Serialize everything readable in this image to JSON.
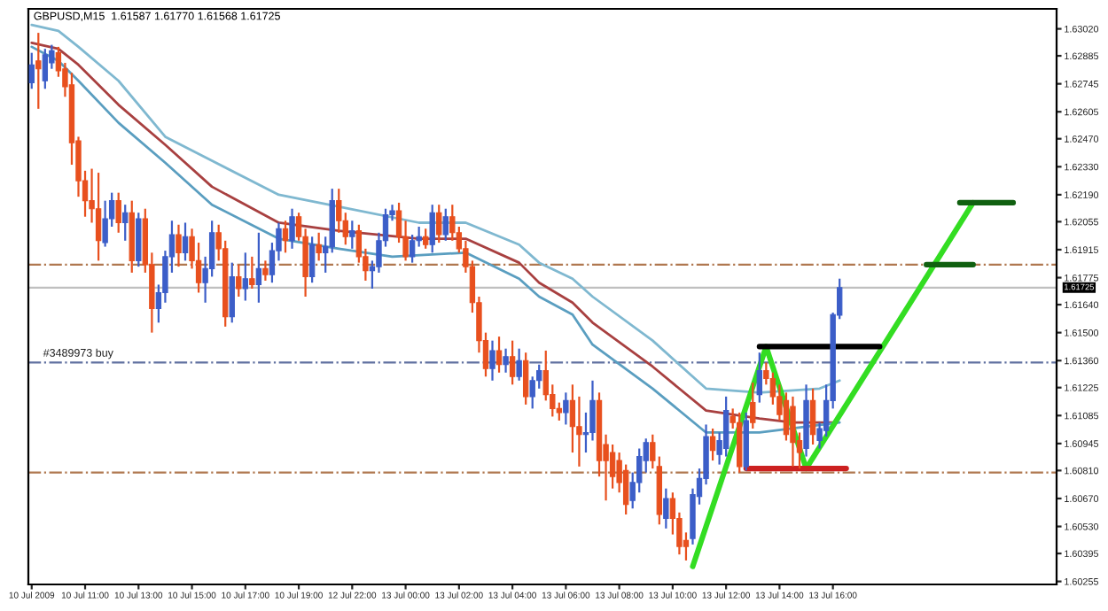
{
  "chart_data": {
    "type": "candlestick",
    "title": "GBPUSD,M15  1.61587 1.61770 1.61568 1.61725",
    "categories": [
      "10 Jul 2009",
      null,
      null,
      null,
      null,
      null,
      null,
      null,
      "10 Jul 11:00",
      null,
      null,
      null,
      null,
      null,
      null,
      null,
      "10 Jul 13:00",
      null,
      null,
      null,
      null,
      null,
      null,
      null,
      "10 Jul 15:00",
      null,
      null,
      null,
      null,
      null,
      null,
      null,
      "10 Jul 17:00",
      null,
      null,
      null,
      null,
      null,
      null,
      null,
      "10 Jul 19:00",
      null,
      null,
      null,
      null,
      null,
      null,
      null,
      "12 Jul 22:00",
      null,
      null,
      null,
      null,
      null,
      null,
      null,
      "13 Jul 00:00",
      null,
      null,
      null,
      null,
      null,
      null,
      null,
      "13 Jul 02:00",
      null,
      null,
      null,
      null,
      null,
      null,
      null,
      "13 Jul 04:00",
      null,
      null,
      null,
      null,
      null,
      null,
      null,
      "13 Jul 06:00",
      null,
      null,
      null,
      null,
      null,
      null,
      null,
      "13 Jul 08:00",
      null,
      null,
      null,
      null,
      null,
      null,
      null,
      "13 Jul 10:00",
      null,
      null,
      null,
      null,
      null,
      null,
      null,
      "13 Jul 12:00",
      null,
      null,
      null,
      null,
      null,
      null,
      null,
      "13 Jul 14:00",
      null,
      null,
      null,
      null,
      null,
      null,
      null,
      "13 Jul 16:00",
      null,
      null,
      null,
      null,
      null,
      null,
      null,
      null,
      null,
      null,
      null,
      null,
      null,
      null,
      null,
      null,
      null,
      null,
      null,
      null,
      null,
      null,
      null,
      null,
      null,
      null,
      null,
      null,
      null,
      null,
      null,
      null,
      null
    ],
    "ohlc": [
      [
        1.6275,
        1.629,
        1.6272,
        1.6284
      ],
      [
        1.6286,
        1.63,
        1.6262,
        1.6282
      ],
      [
        1.6276,
        1.6292,
        1.6272,
        1.6289
      ],
      [
        1.6285,
        1.6294,
        1.6282,
        1.6291
      ],
      [
        1.629,
        1.6293,
        1.6278,
        1.6281
      ],
      [
        1.6282,
        1.6285,
        1.6268,
        1.6273
      ],
      [
        1.6274,
        1.628,
        1.6234,
        1.6245
      ],
      [
        1.6246,
        1.6248,
        1.6218,
        1.6226
      ],
      [
        1.6226,
        1.6231,
        1.6208,
        1.6216
      ],
      [
        1.6216,
        1.6232,
        1.6205,
        1.6212
      ],
      [
        1.6212,
        1.623,
        1.6186,
        1.6196
      ],
      [
        1.6195,
        1.6216,
        1.6193,
        1.6207
      ],
      [
        1.6207,
        1.622,
        1.6203,
        1.6216
      ],
      [
        1.6216,
        1.622,
        1.62,
        1.6205
      ],
      [
        1.6205,
        1.6214,
        1.6196,
        1.621
      ],
      [
        1.621,
        1.6216,
        1.618,
        1.6186
      ],
      [
        1.6186,
        1.621,
        1.6183,
        1.6207
      ],
      [
        1.6207,
        1.6212,
        1.618,
        1.6184
      ],
      [
        1.6184,
        1.619,
        1.615,
        1.6162
      ],
      [
        1.6162,
        1.6174,
        1.6155,
        1.617
      ],
      [
        1.617,
        1.6191,
        1.6165,
        1.6188
      ],
      [
        1.6188,
        1.6206,
        1.618,
        1.6199
      ],
      [
        1.6199,
        1.6204,
        1.6183,
        1.619
      ],
      [
        1.619,
        1.6205,
        1.6186,
        1.6198
      ],
      [
        1.6198,
        1.6202,
        1.6182,
        1.6186
      ],
      [
        1.6186,
        1.6195,
        1.617,
        1.6175
      ],
      [
        1.6175,
        1.6188,
        1.6165,
        1.6182
      ],
      [
        1.6182,
        1.6206,
        1.6178,
        1.62
      ],
      [
        1.62,
        1.6204,
        1.6186,
        1.6192
      ],
      [
        1.6192,
        1.6196,
        1.6153,
        1.6158
      ],
      [
        1.6158,
        1.6185,
        1.6155,
        1.6178
      ],
      [
        1.6178,
        1.6184,
        1.6168,
        1.6172
      ],
      [
        1.6172,
        1.619,
        1.6166,
        1.6177
      ],
      [
        1.6177,
        1.6188,
        1.6172,
        1.6174
      ],
      [
        1.6174,
        1.62,
        1.6165,
        1.6182
      ],
      [
        1.6182,
        1.6186,
        1.6176,
        1.6179
      ],
      [
        1.6179,
        1.6195,
        1.6175,
        1.6191
      ],
      [
        1.6191,
        1.6205,
        1.6186,
        1.6202
      ],
      [
        1.6202,
        1.6206,
        1.619,
        1.6196
      ],
      [
        1.6196,
        1.6212,
        1.6192,
        1.6208
      ],
      [
        1.6208,
        1.621,
        1.6196,
        1.6198
      ],
      [
        1.6198,
        1.6202,
        1.6168,
        1.6178
      ],
      [
        1.6178,
        1.6198,
        1.6175,
        1.6194
      ],
      [
        1.6194,
        1.62,
        1.6186,
        1.619
      ],
      [
        1.619,
        1.6198,
        1.618,
        1.6193
      ],
      [
        1.6193,
        1.6222,
        1.619,
        1.6216
      ],
      [
        1.6216,
        1.6222,
        1.62,
        1.6206
      ],
      [
        1.6206,
        1.621,
        1.6194,
        1.6198
      ],
      [
        1.6198,
        1.6206,
        1.6192,
        1.6201
      ],
      [
        1.6201,
        1.6204,
        1.6185,
        1.6188
      ],
      [
        1.6188,
        1.6192,
        1.6176,
        1.6181
      ],
      [
        1.6181,
        1.6186,
        1.6172,
        1.6183
      ],
      [
        1.6183,
        1.62,
        1.618,
        1.6196
      ],
      [
        1.6196,
        1.6212,
        1.6193,
        1.6209
      ],
      [
        1.6209,
        1.6214,
        1.6206,
        1.6211
      ],
      [
        1.6211,
        1.6215,
        1.6195,
        1.6198
      ],
      [
        1.6198,
        1.6206,
        1.6186,
        1.6188
      ],
      [
        1.6188,
        1.6199,
        1.6185,
        1.6196
      ],
      [
        1.6196,
        1.6203,
        1.6193,
        1.6198
      ],
      [
        1.6198,
        1.6202,
        1.6192,
        1.6194
      ],
      [
        1.6194,
        1.6214,
        1.619,
        1.621
      ],
      [
        1.621,
        1.6214,
        1.6195,
        1.6199
      ],
      [
        1.6199,
        1.6212,
        1.6196,
        1.6208
      ],
      [
        1.6208,
        1.6214,
        1.6196,
        1.62
      ],
      [
        1.62,
        1.6203,
        1.619,
        1.6192
      ],
      [
        1.6192,
        1.6196,
        1.618,
        1.6183
      ],
      [
        1.6183,
        1.6186,
        1.616,
        1.6165
      ],
      [
        1.6165,
        1.6168,
        1.614,
        1.6146
      ],
      [
        1.6146,
        1.615,
        1.6128,
        1.6132
      ],
      [
        1.6132,
        1.6146,
        1.6126,
        1.6141
      ],
      [
        1.6141,
        1.6148,
        1.613,
        1.6134
      ],
      [
        1.6134,
        1.6142,
        1.613,
        1.6138
      ],
      [
        1.6138,
        1.6146,
        1.6124,
        1.6128
      ],
      [
        1.6128,
        1.6142,
        1.6126,
        1.6136
      ],
      [
        1.6136,
        1.614,
        1.6114,
        1.6118
      ],
      [
        1.6118,
        1.6128,
        1.6112,
        1.6126
      ],
      [
        1.6126,
        1.6134,
        1.6122,
        1.6131
      ],
      [
        1.6131,
        1.6141,
        1.6116,
        1.6119
      ],
      [
        1.6119,
        1.6124,
        1.6108,
        1.6112
      ],
      [
        1.6112,
        1.6115,
        1.6106,
        1.611
      ],
      [
        1.611,
        1.612,
        1.6104,
        1.6116
      ],
      [
        1.6116,
        1.6124,
        1.609,
        1.6103
      ],
      [
        1.6103,
        1.6118,
        1.6083,
        1.6099
      ],
      [
        1.6099,
        1.611,
        1.609,
        1.61
      ],
      [
        1.61,
        1.6126,
        1.6096,
        1.6116
      ],
      [
        1.6116,
        1.612,
        1.6078,
        1.6086
      ],
      [
        1.6094,
        1.6099,
        1.6066,
        1.6086
      ],
      [
        1.609,
        1.6094,
        1.6072,
        1.6078
      ],
      [
        1.6086,
        1.609,
        1.607,
        1.6075
      ],
      [
        1.6081,
        1.6084,
        1.6059,
        1.6064
      ],
      [
        1.6066,
        1.608,
        1.6062,
        1.6075
      ],
      [
        1.6075,
        1.6092,
        1.607,
        1.6088
      ],
      [
        1.6086,
        1.6097,
        1.608,
        1.6095
      ],
      [
        1.6095,
        1.6099,
        1.6082,
        1.6086
      ],
      [
        1.6083,
        1.6088,
        1.6054,
        1.6059
      ],
      [
        1.6057,
        1.6072,
        1.6052,
        1.6067
      ],
      [
        1.6067,
        1.607,
        1.6049,
        1.6057
      ],
      [
        1.6057,
        1.606,
        1.6039,
        1.6043
      ],
      [
        1.6046,
        1.605,
        1.6036,
        1.6043
      ],
      [
        1.6047,
        1.6072,
        1.6044,
        1.6069
      ],
      [
        1.6068,
        1.6082,
        1.6064,
        1.6077
      ],
      [
        1.6077,
        1.6104,
        1.6074,
        1.6098
      ],
      [
        1.6098,
        1.6102,
        1.6086,
        1.6091
      ],
      [
        1.6089,
        1.61,
        1.6084,
        1.6096
      ],
      [
        1.6092,
        1.6118,
        1.6088,
        1.6111
      ],
      [
        1.6108,
        1.6112,
        1.6102,
        1.6105
      ],
      [
        1.6105,
        1.611,
        1.608,
        1.6083
      ],
      [
        1.6083,
        1.611,
        1.6081,
        1.6106
      ],
      [
        1.6115,
        1.6125,
        1.6102,
        1.6105
      ],
      [
        1.6119,
        1.614,
        1.6115,
        1.6131
      ],
      [
        1.6131,
        1.6135,
        1.6124,
        1.6127
      ],
      [
        1.6127,
        1.613,
        1.6114,
        1.6118
      ],
      [
        1.6118,
        1.6124,
        1.6106,
        1.6109
      ],
      [
        1.6116,
        1.612,
        1.6096,
        1.6099
      ],
      [
        1.6113,
        1.6118,
        1.6083,
        1.6095
      ],
      [
        1.6096,
        1.61,
        1.6082,
        1.609
      ],
      [
        1.6092,
        1.6124,
        1.6088,
        1.6116
      ],
      [
        1.6116,
        1.6122,
        1.6094,
        1.6099
      ],
      [
        1.6096,
        1.6105,
        1.6092,
        1.6102
      ],
      [
        1.6101,
        1.6124,
        1.6098,
        1.6116
      ],
      [
        1.6116,
        1.616,
        1.6112,
        1.6159
      ],
      [
        1.61587,
        1.6177,
        1.61568,
        1.61725
      ],
      null,
      null,
      null,
      null,
      null,
      null,
      null,
      null,
      null,
      null,
      null,
      null,
      null,
      null,
      null,
      null,
      null,
      null,
      null,
      null,
      null,
      null,
      null,
      null,
      null,
      null,
      null,
      null,
      null,
      null,
      null,
      null
    ],
    "colors": [
      "#3c5ec8",
      "#e8501e",
      "#3c5ec8",
      "#3c5ec8",
      "#e8501e",
      "#e8501e",
      "#e8501e",
      "#e8501e",
      "#e8501e",
      "#e8501e",
      "#e8501e",
      "#3c5ec8",
      "#3c5ec8",
      "#e8501e",
      "#3c5ec8",
      "#e8501e",
      "#3c5ec8",
      "#e8501e",
      "#e8501e",
      "#3c5ec8",
      "#3c5ec8",
      "#3c5ec8",
      "#e8501e",
      "#3c5ec8",
      "#e8501e",
      "#e8501e",
      "#3c5ec8",
      "#3c5ec8",
      "#e8501e",
      "#e8501e",
      "#3c5ec8",
      "#e8501e",
      "#3c5ec8",
      "#e8501e",
      "#3c5ec8",
      "#e8501e",
      "#3c5ec8",
      "#3c5ec8",
      "#e8501e",
      "#3c5ec8",
      "#e8501e",
      "#e8501e",
      "#3c5ec8",
      "#e8501e",
      "#3c5ec8",
      "#3c5ec8",
      "#e8501e",
      "#e8501e",
      "#3c5ec8",
      "#e8501e",
      "#e8501e",
      "#3c5ec8",
      "#3c5ec8",
      "#3c5ec8",
      "#3c5ec8",
      "#e8501e",
      "#e8501e",
      "#3c5ec8",
      "#3c5ec8",
      "#e8501e",
      "#3c5ec8",
      "#e8501e",
      "#3c5ec8",
      "#e8501e",
      "#e8501e",
      "#e8501e",
      "#e8501e",
      "#e8501e",
      "#e8501e",
      "#3c5ec8",
      "#e8501e",
      "#3c5ec8",
      "#e8501e",
      "#3c5ec8",
      "#e8501e",
      "#3c5ec8",
      "#3c5ec8",
      "#e8501e",
      "#e8501e",
      "#e8501e",
      "#3c5ec8",
      "#e8501e",
      "#e8501e",
      "#3c5ec8",
      "#3c5ec8",
      "#e8501e",
      "#e8501e",
      "#e8501e",
      "#e8501e",
      "#e8501e",
      "#3c5ec8",
      "#3c5ec8",
      "#3c5ec8",
      "#e8501e",
      "#e8501e",
      "#3c5ec8",
      "#e8501e",
      "#e8501e",
      "#e8501e",
      "#3c5ec8",
      "#3c5ec8",
      "#3c5ec8",
      "#e8501e",
      "#3c5ec8",
      "#3c5ec8",
      "#e8501e",
      "#e8501e",
      "#3c5ec8",
      "#e8501e",
      "#3c5ec8",
      "#e8501e",
      "#e8501e",
      "#e8501e",
      "#e8501e",
      "#e8501e",
      "#e8501e",
      "#3c5ec8",
      "#e8501e",
      "#3c5ec8",
      "#3c5ec8",
      "#3c5ec8",
      "#3c5ec8",
      null,
      null,
      null,
      null,
      null,
      null,
      null,
      null,
      null,
      null,
      null,
      null,
      null,
      null,
      null,
      null,
      null,
      null,
      null,
      null,
      null,
      null,
      null,
      null,
      null,
      null,
      null,
      null,
      null,
      null,
      null,
      null
    ],
    "series": [
      {
        "type": "line",
        "color": "#7fb8d0",
        "values": [
          1.6304,
          null,
          null,
          null,
          1.6301,
          null,
          null,
          1.6293,
          null,
          null,
          null,
          null,
          null,
          1.6276,
          null,
          null,
          null,
          null,
          null,
          null,
          1.6248,
          null,
          null,
          null,
          null,
          null,
          null,
          1.6236,
          null,
          null,
          null,
          null,
          null,
          null,
          null,
          null,
          null,
          1.6219,
          null,
          null,
          null,
          null,
          null,
          null,
          null,
          null,
          1.6213,
          null,
          null,
          null,
          null,
          null,
          null,
          null,
          null,
          null,
          null,
          null,
          1.6205,
          null,
          null,
          null,
          null,
          null,
          null,
          1.6205,
          null,
          null,
          null,
          null,
          null,
          null,
          null,
          1.6194,
          null,
          null,
          1.6185,
          null,
          null,
          null,
          null,
          1.6177,
          null,
          null,
          1.6168,
          null,
          null,
          null,
          null,
          null,
          null,
          null,
          null,
          1.6146,
          null,
          null,
          null,
          null,
          null,
          null,
          null,
          1.6122,
          null,
          null,
          null,
          null,
          null,
          null,
          null,
          1.612,
          null,
          null,
          null,
          null,
          null,
          null,
          null,
          null,
          1.6122,
          null,
          null,
          1.6126,
          null,
          null,
          null,
          null,
          null,
          null,
          null,
          null,
          null,
          null,
          null,
          null,
          null,
          null,
          null,
          null,
          null,
          null,
          null,
          null,
          null,
          null,
          null,
          null,
          null,
          null,
          null,
          null,
          null,
          null,
          null,
          null
        ]
      },
      {
        "type": "line",
        "color": "#a84040",
        "values": [
          1.6295,
          null,
          null,
          null,
          1.6292,
          null,
          null,
          1.6284,
          null,
          null,
          null,
          null,
          null,
          1.6264,
          null,
          null,
          null,
          null,
          null,
          null,
          1.6244,
          null,
          null,
          null,
          null,
          null,
          null,
          1.6223,
          null,
          null,
          null,
          null,
          null,
          null,
          null,
          null,
          null,
          1.6205,
          null,
          null,
          null,
          null,
          null,
          null,
          null,
          null,
          1.6201,
          null,
          null,
          null,
          null,
          null,
          null,
          null,
          null,
          null,
          null,
          null,
          1.6197,
          null,
          null,
          null,
          null,
          null,
          null,
          1.6197,
          null,
          null,
          null,
          null,
          null,
          null,
          null,
          1.6185,
          null,
          null,
          1.6175,
          null,
          null,
          null,
          null,
          1.6165,
          null,
          null,
          1.6155,
          null,
          null,
          null,
          null,
          null,
          null,
          null,
          null,
          1.6133,
          null,
          null,
          null,
          null,
          null,
          null,
          null,
          1.6111,
          null,
          null,
          null,
          null,
          null,
          null,
          null,
          1.6107,
          null,
          null,
          null,
          null,
          1.6105,
          null,
          null,
          null,
          null,
          null,
          1.6105,
          null,
          null,
          null,
          null,
          null,
          null,
          null,
          null,
          null,
          null,
          null,
          null,
          null,
          null,
          null,
          null,
          null,
          null,
          null,
          null,
          null,
          null,
          null,
          null,
          null,
          null,
          null,
          null,
          null,
          null,
          null,
          null,
          null
        ]
      },
      {
        "type": "line",
        "color": "#5a9ec0",
        "values": [
          1.6293,
          null,
          null,
          null,
          1.6286,
          null,
          null,
          1.6276,
          null,
          null,
          null,
          null,
          null,
          1.6255,
          null,
          null,
          null,
          null,
          null,
          null,
          1.6235,
          null,
          null,
          null,
          null,
          null,
          null,
          1.6214,
          null,
          null,
          null,
          null,
          null,
          null,
          null,
          null,
          null,
          1.6197,
          null,
          null,
          null,
          null,
          null,
          null,
          null,
          null,
          1.6192,
          null,
          null,
          null,
          null,
          null,
          null,
          null,
          1.6188,
          null,
          null,
          null,
          null,
          null,
          null,
          null,
          null,
          null,
          null,
          1.619,
          null,
          null,
          null,
          null,
          null,
          null,
          null,
          1.6177,
          null,
          null,
          1.6168,
          null,
          null,
          null,
          null,
          1.6159,
          null,
          null,
          1.6144,
          null,
          null,
          null,
          null,
          null,
          null,
          null,
          null,
          1.6122,
          null,
          null,
          null,
          null,
          null,
          null,
          null,
          1.61,
          null,
          null,
          null,
          null,
          null,
          null,
          null,
          1.61,
          null,
          null,
          null,
          null,
          null,
          null,
          null,
          null,
          null,
          null,
          null,
          1.6105,
          null,
          null,
          null,
          null,
          null,
          null,
          null,
          null,
          null,
          null,
          null,
          null,
          null,
          null,
          null,
          null,
          null,
          null,
          null,
          null,
          null,
          null,
          null,
          null,
          null,
          null,
          null,
          null,
          null,
          null,
          null,
          null
        ]
      },
      {
        "type": "line",
        "color": "#33dd22",
        "values": [
          null,
          null,
          null,
          null,
          null,
          null,
          null,
          null,
          null,
          null,
          null,
          null,
          null,
          null,
          null,
          null,
          null,
          null,
          null,
          null,
          null,
          null,
          null,
          null,
          null,
          null,
          null,
          null,
          null,
          null,
          null,
          null,
          null,
          null,
          null,
          null,
          null,
          null,
          null,
          null,
          null,
          null,
          null,
          null,
          null,
          null,
          null,
          null,
          null,
          null,
          null,
          null,
          null,
          null,
          null,
          null,
          null,
          null,
          null,
          null,
          null,
          null,
          null,
          null,
          null,
          null,
          null,
          null,
          null,
          null,
          null,
          null,
          null,
          null,
          null,
          null,
          null,
          null,
          null,
          null,
          null,
          null,
          null,
          null,
          null,
          null,
          null,
          null,
          null,
          null,
          null,
          null,
          null,
          null,
          null,
          null,
          null,
          null,
          null,
          1.6033,
          null,
          null,
          null,
          null,
          null,
          null,
          null,
          null,
          null,
          null,
          1.6143,
          null,
          null,
          null,
          null,
          null,
          1.6082,
          null,
          null,
          null,
          null,
          null,
          null,
          null,
          null,
          null,
          null,
          null,
          null,
          null,
          null,
          null,
          null,
          null,
          null,
          null,
          null,
          null,
          null,
          null,
          null,
          1.6215,
          null,
          null,
          null,
          null,
          null,
          null,
          null,
          null,
          null,
          null,
          null,
          null
        ]
      },
      {
        "type": "line",
        "color": "#106010",
        "values": [
          null,
          null,
          null,
          null,
          null,
          null,
          null,
          null,
          null,
          null,
          null,
          null,
          null,
          null,
          null,
          null,
          null,
          null,
          null,
          null,
          null,
          null,
          null,
          null,
          null,
          null,
          null,
          null,
          null,
          null,
          null,
          null,
          null,
          null,
          null,
          null,
          null,
          null,
          null,
          null,
          null,
          null,
          null,
          null,
          null,
          null,
          null,
          null,
          null,
          null,
          null,
          null,
          null,
          null,
          null,
          null,
          null,
          null,
          null,
          null,
          null,
          null,
          null,
          null,
          null,
          null,
          null,
          null,
          null,
          null,
          null,
          null,
          null,
          null,
          null,
          null,
          null,
          null,
          null,
          null,
          null,
          null,
          null,
          null,
          null,
          null,
          null,
          null,
          null,
          null,
          null,
          null,
          null,
          null,
          null,
          null,
          null,
          null,
          null,
          null,
          null,
          null,
          null,
          null,
          null,
          null,
          null,
          null,
          null,
          null,
          null,
          null,
          null,
          null,
          null,
          null,
          null,
          null,
          null,
          null,
          null,
          null,
          null,
          null,
          null,
          null,
          null,
          null,
          null,
          null,
          null,
          null,
          null,
          null,
          null,
          null,
          null,
          null,
          null,
          1.6215,
          null,
          null,
          null,
          null,
          null,
          null,
          null,
          1.6215,
          null,
          null,
          null,
          null,
          null,
          null
        ]
      },
      {
        "type": "line",
        "color": "#106010",
        "values": [
          null,
          null,
          null,
          null,
          null,
          null,
          null,
          null,
          null,
          null,
          null,
          null,
          null,
          null,
          null,
          null,
          null,
          null,
          null,
          null,
          null,
          null,
          null,
          null,
          null,
          null,
          null,
          null,
          null,
          null,
          null,
          null,
          null,
          null,
          null,
          null,
          null,
          null,
          null,
          null,
          null,
          null,
          null,
          null,
          null,
          null,
          null,
          null,
          null,
          null,
          null,
          null,
          null,
          null,
          null,
          null,
          null,
          null,
          null,
          null,
          null,
          null,
          null,
          null,
          null,
          null,
          null,
          null,
          null,
          null,
          null,
          null,
          null,
          null,
          null,
          null,
          null,
          null,
          null,
          null,
          null,
          null,
          null,
          null,
          null,
          null,
          null,
          null,
          null,
          null,
          null,
          null,
          null,
          null,
          null,
          null,
          null,
          null,
          null,
          null,
          null,
          null,
          null,
          null,
          null,
          null,
          null,
          null,
          null,
          null,
          null,
          null,
          null,
          null,
          null,
          null,
          null,
          null,
          null,
          null,
          null,
          null,
          null,
          null,
          null,
          null,
          null,
          null,
          null,
          null,
          null,
          null,
          null,
          null,
          1.6184,
          null,
          null,
          null,
          null,
          null,
          null,
          1.6184,
          null,
          null,
          null,
          null,
          null,
          null,
          null,
          null,
          null,
          null,
          null,
          null
        ]
      },
      {
        "type": "line",
        "color": "#000000",
        "values": [
          null,
          null,
          null,
          null,
          null,
          null,
          null,
          null,
          null,
          null,
          null,
          null,
          null,
          null,
          null,
          null,
          null,
          null,
          null,
          null,
          null,
          null,
          null,
          null,
          null,
          null,
          null,
          null,
          null,
          null,
          null,
          null,
          null,
          null,
          null,
          null,
          null,
          null,
          null,
          null,
          null,
          null,
          null,
          null,
          null,
          null,
          null,
          null,
          null,
          null,
          null,
          null,
          null,
          null,
          null,
          null,
          null,
          null,
          null,
          null,
          null,
          null,
          null,
          null,
          null,
          null,
          null,
          null,
          null,
          null,
          null,
          null,
          null,
          null,
          null,
          null,
          null,
          null,
          null,
          null,
          null,
          null,
          null,
          null,
          null,
          null,
          null,
          null,
          null,
          null,
          null,
          null,
          null,
          null,
          null,
          null,
          null,
          null,
          null,
          null,
          null,
          null,
          null,
          null,
          null,
          null,
          null,
          null,
          null,
          1.6143,
          null,
          null,
          null,
          null,
          null,
          null,
          null,
          null,
          null,
          null,
          null,
          null,
          null,
          null,
          null,
          null,
          null,
          1.6143,
          null,
          null,
          null,
          null,
          null,
          null,
          null,
          null,
          null,
          null,
          null,
          null,
          null,
          null,
          null,
          null,
          null,
          null,
          null,
          null,
          null,
          null,
          null,
          null,
          null,
          null
        ]
      },
      {
        "type": "line",
        "color": "#cc2020",
        "values": [
          null,
          null,
          null,
          null,
          null,
          null,
          null,
          null,
          null,
          null,
          null,
          null,
          null,
          null,
          null,
          null,
          null,
          null,
          null,
          null,
          null,
          null,
          null,
          null,
          null,
          null,
          null,
          null,
          null,
          null,
          null,
          null,
          null,
          null,
          null,
          null,
          null,
          null,
          null,
          null,
          null,
          null,
          null,
          null,
          null,
          null,
          null,
          null,
          null,
          null,
          null,
          null,
          null,
          null,
          null,
          null,
          null,
          null,
          null,
          null,
          null,
          null,
          null,
          null,
          null,
          null,
          null,
          null,
          null,
          null,
          null,
          null,
          null,
          null,
          null,
          null,
          null,
          null,
          null,
          null,
          null,
          null,
          null,
          null,
          null,
          null,
          null,
          null,
          null,
          null,
          null,
          null,
          null,
          null,
          null,
          null,
          null,
          null,
          null,
          null,
          null,
          null,
          null,
          null,
          null,
          null,
          null,
          1.6082,
          null,
          null,
          null,
          null,
          null,
          null,
          null,
          null,
          null,
          null,
          null,
          null,
          null,
          null,
          1.6082,
          null,
          null,
          null,
          null,
          null,
          null,
          null,
          null,
          null,
          null,
          null,
          null,
          null,
          null,
          null,
          null,
          null,
          null,
          null,
          null,
          null,
          null,
          null,
          null,
          null,
          null,
          null,
          null,
          null,
          null,
          null
        ]
      }
    ],
    "ref_lines": [
      {
        "axis": "y",
        "value": 1.6184,
        "color": "#b07850",
        "line_style": "dashed"
      },
      {
        "axis": "y",
        "value": 1.61725,
        "label": "1.61725",
        "color": "#c0c0c0",
        "line_style": "solid"
      },
      {
        "axis": "y",
        "value": 1.6135,
        "label": "#3489973 buy",
        "color": "#6070a0",
        "line_style": "dashed"
      },
      {
        "axis": "y",
        "value": 1.608,
        "color": "#b07850",
        "line_style": "dashed"
      }
    ],
    "ylim": [
      1.6024,
      1.6312
    ],
    "yticks": [
      {
        "value": 1.6302,
        "label": "1.63020"
      },
      1.62885,
      1.62745,
      1.62605,
      {
        "value": 1.6247,
        "label": "1.62470"
      },
      {
        "value": 1.6233,
        "label": "1.62330"
      },
      {
        "value": 1.6219,
        "label": "1.62190"
      },
      1.62055,
      1.61915,
      1.61775,
      {
        "value": 1.6164,
        "label": "1.61640"
      },
      {
        "value": 1.615,
        "label": "1.61500"
      },
      {
        "value": 1.6136,
        "label": "1.61360"
      },
      1.61225,
      1.61085,
      1.60945,
      {
        "value": 1.6081,
        "label": "1.60810"
      },
      {
        "value": 1.6067,
        "label": "1.60670"
      },
      {
        "value": 1.6053,
        "label": "1.60530"
      },
      1.60395,
      1.60255
    ],
    "grid": false,
    "legend": false
  }
}
